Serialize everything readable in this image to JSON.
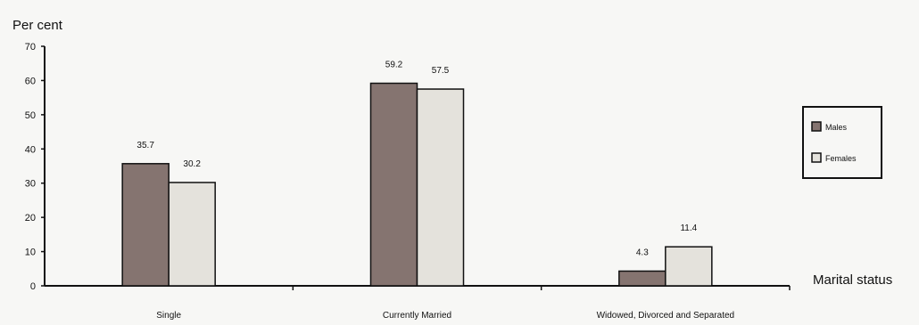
{
  "chart_data": {
    "type": "bar",
    "categories": [
      "Single",
      "Currently Married",
      "Widowed, Divorced and Separated"
    ],
    "series": [
      {
        "name": "Males",
        "values": [
          35.7,
          59.2,
          4.3
        ],
        "color": "#857470"
      },
      {
        "name": "Females",
        "values": [
          30.2,
          57.5,
          11.4
        ],
        "color": "#e4e2dc"
      }
    ],
    "data_labels": {
      "Males": [
        "35.7",
        "59.2",
        "4.3"
      ],
      "Females": [
        "30.2",
        "57.5",
        "11.4"
      ]
    },
    "ylabel": "Per  cent",
    "xlabel": "Marital status",
    "ylim": [
      0,
      70
    ],
    "yticks": [
      "0",
      "10",
      "20",
      "30",
      "40",
      "50",
      "60",
      "70"
    ],
    "grid": false,
    "legend_position": "right"
  }
}
